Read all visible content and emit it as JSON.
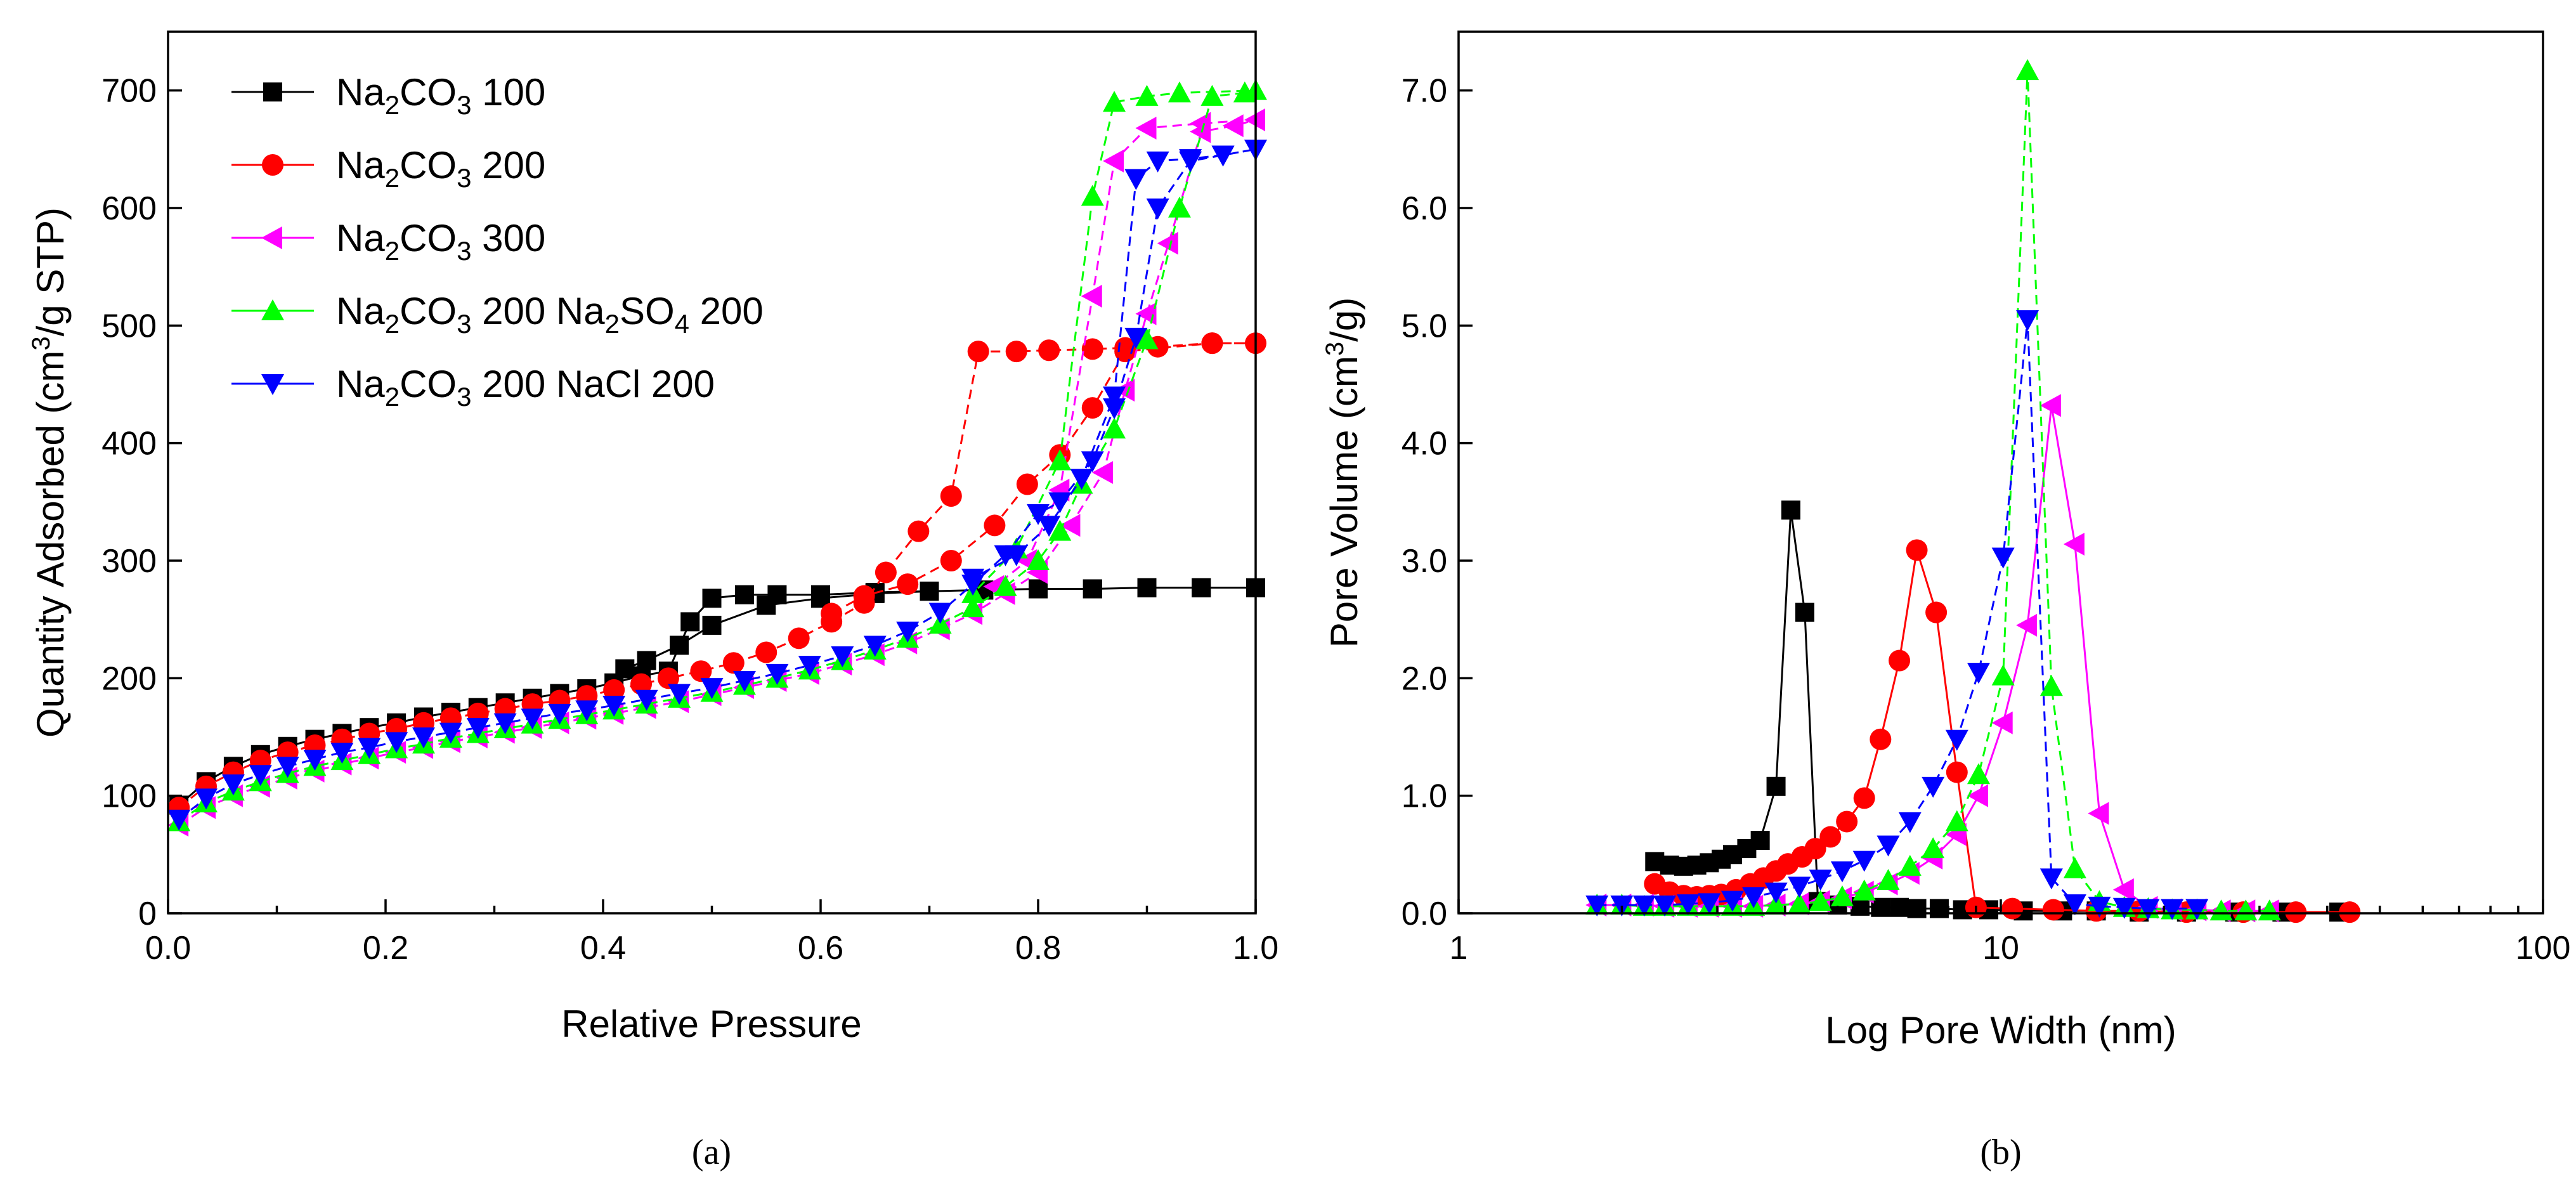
{
  "legend": [
    {
      "base": "Na",
      "sub1": "2",
      "mid": "CO",
      "sub2": "3",
      "rest": " 100",
      "sub3": "",
      "tail": ""
    },
    {
      "base": "Na",
      "sub1": "2",
      "mid": "CO",
      "sub2": "3",
      "rest": " 200",
      "sub3": "",
      "tail": ""
    },
    {
      "base": "Na",
      "sub1": "2",
      "mid": "CO",
      "sub2": "3",
      "rest": " 300",
      "sub3": "",
      "tail": ""
    },
    {
      "base": "Na",
      "sub1": "2",
      "mid": "CO",
      "sub2": "3",
      "rest": " 200 Na",
      "sub3": "2",
      "mid2": "SO",
      "sub4": "4",
      "tail": " 200"
    },
    {
      "base": "Na",
      "sub1": "2",
      "mid": "CO",
      "sub2": "3",
      "rest": " 200 NaCl 200",
      "sub3": "",
      "tail": ""
    }
  ],
  "chart_data": [
    {
      "type": "line",
      "caption": "(a)",
      "xlabel": "Relative Pressure",
      "ylabel": "Quantity Adsorbed (cm³/g STP)",
      "ylabel_parts": {
        "pre": "Quantity Adsorbed (cm",
        "sup": "3",
        "post": "/g STP)"
      },
      "xlim": [
        0,
        1.0
      ],
      "ylim": [
        0,
        750
      ],
      "xticks": [
        0.0,
        0.2,
        0.4,
        0.6,
        0.8,
        1.0
      ],
      "xtick_labels": [
        "0.0",
        "0.2",
        "0.4",
        "0.6",
        "0.8",
        "1.0"
      ],
      "yticks": [
        0,
        100,
        200,
        300,
        400,
        500,
        600,
        700
      ],
      "ytick_labels": [
        "0",
        "100",
        "200",
        "300",
        "400",
        "500",
        "600",
        "700"
      ],
      "grid": false,
      "legend_position": "top-left",
      "series": [
        {
          "name": "Na2CO3 100",
          "color": "#000000",
          "marker": "square",
          "dash": "",
          "x": [
            0.01,
            0.035,
            0.06,
            0.085,
            0.11,
            0.135,
            0.16,
            0.185,
            0.21,
            0.235,
            0.26,
            0.285,
            0.31,
            0.335,
            0.36,
            0.385,
            0.41,
            0.435,
            0.46,
            0.48,
            0.5,
            0.53,
            0.56,
            0.6,
            0.65,
            0.7,
            0.75,
            0.8,
            0.85,
            0.9,
            0.95,
            1.0,
            0.95,
            0.9,
            0.85,
            0.8,
            0.75,
            0.7,
            0.65,
            0.6,
            0.55,
            0.5,
            0.47,
            0.44,
            0.42
          ],
          "y": [
            92,
            112,
            125,
            135,
            142,
            148,
            153,
            158,
            162,
            167,
            171,
            175,
            179,
            183,
            187,
            191,
            196,
            202,
            206,
            248,
            268,
            271,
            271,
            271,
            273,
            274,
            275,
            276,
            276,
            277,
            277,
            277,
            277,
            277,
            276,
            276,
            275,
            274,
            272,
            268,
            262,
            245,
            228,
            215,
            208
          ]
        },
        {
          "name": "Na2CO3 200",
          "color": "#ff0000",
          "marker": "circle",
          "dash": "5,3",
          "x": [
            0.01,
            0.035,
            0.06,
            0.085,
            0.11,
            0.135,
            0.16,
            0.185,
            0.21,
            0.235,
            0.26,
            0.285,
            0.31,
            0.335,
            0.36,
            0.385,
            0.41,
            0.435,
            0.46,
            0.49,
            0.52,
            0.55,
            0.58,
            0.61,
            0.64,
            0.66,
            0.69,
            0.72,
            0.745,
            0.78,
            0.81,
            0.85,
            0.88,
            0.91,
            0.96,
            1.0,
            0.96,
            0.88,
            0.85,
            0.82,
            0.79,
            0.76,
            0.72,
            0.68,
            0.64,
            0.61
          ],
          "y": [
            90,
            108,
            120,
            130,
            137,
            143,
            148,
            153,
            157,
            162,
            166,
            170,
            174,
            178,
            181,
            185,
            190,
            195,
            200,
            206,
            213,
            222,
            234,
            248,
            264,
            290,
            325,
            355,
            478,
            478,
            479,
            480,
            481,
            482,
            485,
            485,
            485,
            478,
            430,
            390,
            365,
            330,
            300,
            280,
            270,
            255
          ]
        },
        {
          "name": "Na2CO3 300",
          "color": "#ff00ff",
          "marker": "triangle-left",
          "dash": "5,3",
          "x": [
            0.01,
            0.035,
            0.06,
            0.085,
            0.11,
            0.135,
            0.16,
            0.185,
            0.21,
            0.235,
            0.26,
            0.285,
            0.31,
            0.335,
            0.36,
            0.385,
            0.41,
            0.44,
            0.47,
            0.5,
            0.53,
            0.56,
            0.59,
            0.62,
            0.65,
            0.68,
            0.71,
            0.74,
            0.77,
            0.8,
            0.83,
            0.86,
            0.88,
            0.9,
            0.92,
            0.95,
            0.98,
            1.0,
            0.95,
            0.9,
            0.87,
            0.85,
            0.82,
            0.79,
            0.76
          ],
          "y": [
            75,
            90,
            100,
            108,
            115,
            121,
            127,
            132,
            137,
            141,
            146,
            150,
            154,
            158,
            162,
            166,
            170,
            175,
            180,
            186,
            192,
            198,
            204,
            212,
            220,
            230,
            242,
            255,
            272,
            290,
            330,
            375,
            445,
            510,
            570,
            665,
            670,
            675,
            672,
            668,
            640,
            525,
            360,
            300,
            278
          ]
        },
        {
          "name": "Na2CO3 200 Na2SO4 200",
          "color": "#00ff00",
          "marker": "triangle-up",
          "dash": "5,3",
          "x": [
            0.01,
            0.035,
            0.06,
            0.085,
            0.11,
            0.135,
            0.16,
            0.185,
            0.21,
            0.235,
            0.26,
            0.285,
            0.31,
            0.335,
            0.36,
            0.385,
            0.41,
            0.44,
            0.47,
            0.5,
            0.53,
            0.56,
            0.59,
            0.62,
            0.65,
            0.68,
            0.71,
            0.74,
            0.77,
            0.8,
            0.82,
            0.84,
            0.87,
            0.9,
            0.93,
            0.96,
            0.99,
            1.0,
            0.93,
            0.9,
            0.87,
            0.85,
            0.82,
            0.78,
            0.74
          ],
          "y": [
            78,
            94,
            104,
            112,
            119,
            125,
            130,
            135,
            140,
            144,
            149,
            153,
            157,
            161,
            165,
            169,
            173,
            178,
            183,
            188,
            194,
            200,
            207,
            215,
            224,
            234,
            246,
            260,
            278,
            300,
            325,
            365,
            412,
            488,
            600,
            695,
            698,
            700,
            698,
            695,
            690,
            610,
            385,
            310,
            272
          ]
        },
        {
          "name": "Na2CO3 200 NaCl 200",
          "color": "#0000ff",
          "marker": "triangle-down",
          "dash": "5,3",
          "x": [
            0.01,
            0.035,
            0.06,
            0.085,
            0.11,
            0.135,
            0.16,
            0.185,
            0.21,
            0.235,
            0.26,
            0.285,
            0.31,
            0.335,
            0.36,
            0.385,
            0.41,
            0.44,
            0.47,
            0.5,
            0.53,
            0.56,
            0.59,
            0.62,
            0.65,
            0.68,
            0.71,
            0.74,
            0.77,
            0.8,
            0.82,
            0.85,
            0.87,
            0.89,
            0.91,
            0.94,
            0.97,
            1.0,
            0.97,
            0.94,
            0.91,
            0.89,
            0.87,
            0.84,
            0.81,
            0.78,
            0.74
          ],
          "y": [
            80,
            98,
            110,
            118,
            125,
            131,
            137,
            141,
            146,
            150,
            154,
            158,
            162,
            166,
            170,
            173,
            177,
            182,
            187,
            192,
            198,
            204,
            211,
            219,
            228,
            240,
            256,
            280,
            305,
            340,
            350,
            385,
            430,
            490,
            600,
            640,
            645,
            650,
            645,
            642,
            640,
            625,
            440,
            370,
            330,
            305,
            285
          ]
        }
      ]
    },
    {
      "type": "line",
      "caption": "(b)",
      "xlabel": "Log Pore Width (nm)",
      "ylabel": "Pore Volume (cm³/g)",
      "ylabel_parts": {
        "pre": "Pore Volume (cm",
        "sup": "3",
        "post": "/g)"
      },
      "xscale": "log",
      "xlim": [
        1,
        100
      ],
      "ylim": [
        0,
        7.5
      ],
      "xticks": [
        1,
        10,
        100
      ],
      "xtick_labels": [
        "1",
        "10",
        "100"
      ],
      "yticks": [
        0,
        1,
        2,
        3,
        4,
        5,
        6,
        7
      ],
      "ytick_labels": [
        "0.0",
        "1.0",
        "2.0",
        "3.0",
        "4.0",
        "5.0",
        "6.0",
        "7.0"
      ],
      "grid": false,
      "legend_position": "none",
      "series": [
        {
          "name": "Na2CO3 100",
          "color": "#000000",
          "marker": "square",
          "dash": "",
          "x": [
            2.3,
            2.45,
            2.6,
            2.75,
            2.9,
            3.05,
            3.2,
            3.4,
            3.6,
            3.85,
            4.1,
            4.35,
            4.6,
            5.0,
            5.5,
            6.0,
            6.5,
            7.0,
            7.7,
            8.5,
            9.5,
            11,
            13,
            15,
            18,
            22,
            27,
            33,
            42
          ],
          "y": [
            0.44,
            0.41,
            0.4,
            0.41,
            0.43,
            0.46,
            0.5,
            0.55,
            0.62,
            1.08,
            3.43,
            2.56,
            0.1,
            0.07,
            0.06,
            0.05,
            0.05,
            0.04,
            0.04,
            0.03,
            0.03,
            0.02,
            0.02,
            0.02,
            0.01,
            0.01,
            0.01,
            0.01,
            0.01
          ]
        },
        {
          "name": "Na2CO3 200",
          "color": "#ff0000",
          "marker": "circle",
          "dash": "",
          "x": [
            2.3,
            2.45,
            2.6,
            2.75,
            2.9,
            3.05,
            3.25,
            3.45,
            3.65,
            3.85,
            4.05,
            4.3,
            4.55,
            4.85,
            5.2,
            5.6,
            6.0,
            6.5,
            7.0,
            7.6,
            8.3,
            9.0,
            10.5,
            12.5,
            15,
            18,
            22,
            28,
            35,
            44
          ],
          "y": [
            0.25,
            0.18,
            0.15,
            0.14,
            0.15,
            0.16,
            0.2,
            0.25,
            0.3,
            0.36,
            0.42,
            0.48,
            0.55,
            0.65,
            0.78,
            0.98,
            1.48,
            2.15,
            3.09,
            2.56,
            1.2,
            0.05,
            0.04,
            0.03,
            0.02,
            0.02,
            0.01,
            0.01,
            0.01,
            0.01
          ]
        },
        {
          "name": "Na2CO3 300",
          "color": "#ff00ff",
          "marker": "triangle-left",
          "dash": "",
          "x": [
            1.8,
            2.0,
            2.2,
            2.4,
            2.65,
            2.9,
            3.2,
            3.5,
            3.85,
            4.25,
            4.65,
            5.1,
            5.6,
            6.2,
            6.8,
            7.5,
            8.3,
            9.1,
            10.1,
            11.2,
            12.4,
            13.7,
            15.2,
            16.9,
            18.7,
            20.7,
            23,
            25.5,
            28.3,
            31.3
          ],
          "y": [
            0.07,
            0.07,
            0.07,
            0.06,
            0.06,
            0.06,
            0.06,
            0.06,
            0.07,
            0.08,
            0.1,
            0.13,
            0.18,
            0.25,
            0.34,
            0.47,
            0.67,
            1.0,
            1.62,
            2.45,
            4.32,
            3.14,
            0.85,
            0.2,
            0.05,
            0.03,
            0.03,
            0.02,
            0.02,
            0.02
          ]
        },
        {
          "name": "Na2CO3 200 Na2SO4 200",
          "color": "#00ff00",
          "marker": "triangle-up",
          "dash": "5,3",
          "x": [
            1.8,
            2.0,
            2.2,
            2.4,
            2.65,
            2.9,
            3.2,
            3.5,
            3.85,
            4.25,
            4.65,
            5.1,
            5.6,
            6.2,
            6.8,
            7.5,
            8.3,
            9.1,
            10.1,
            11.2,
            12.4,
            13.7,
            15.2,
            16.9,
            18.7,
            20.7,
            23,
            25.5,
            28.3,
            31.3
          ],
          "y": [
            0.07,
            0.07,
            0.06,
            0.06,
            0.06,
            0.06,
            0.06,
            0.06,
            0.07,
            0.08,
            0.1,
            0.14,
            0.19,
            0.28,
            0.4,
            0.55,
            0.78,
            1.18,
            2.02,
            7.17,
            1.93,
            0.38,
            0.1,
            0.05,
            0.04,
            0.03,
            0.03,
            0.02,
            0.02,
            0.02
          ]
        },
        {
          "name": "Na2CO3 200 NaCl 200",
          "color": "#0000ff",
          "marker": "triangle-down",
          "dash": "5,3",
          "x": [
            1.8,
            2.0,
            2.2,
            2.4,
            2.65,
            2.9,
            3.2,
            3.5,
            3.85,
            4.25,
            4.65,
            5.1,
            5.6,
            6.2,
            6.8,
            7.5,
            8.3,
            9.1,
            10.1,
            11.2,
            12.4,
            13.7,
            15.2,
            16.9,
            18.7,
            20.7,
            23
          ],
          "y": [
            0.07,
            0.07,
            0.07,
            0.07,
            0.08,
            0.09,
            0.11,
            0.14,
            0.18,
            0.23,
            0.29,
            0.36,
            0.45,
            0.58,
            0.78,
            1.08,
            1.48,
            2.05,
            3.03,
            5.05,
            0.3,
            0.08,
            0.06,
            0.05,
            0.04,
            0.04,
            0.04
          ]
        }
      ]
    }
  ]
}
